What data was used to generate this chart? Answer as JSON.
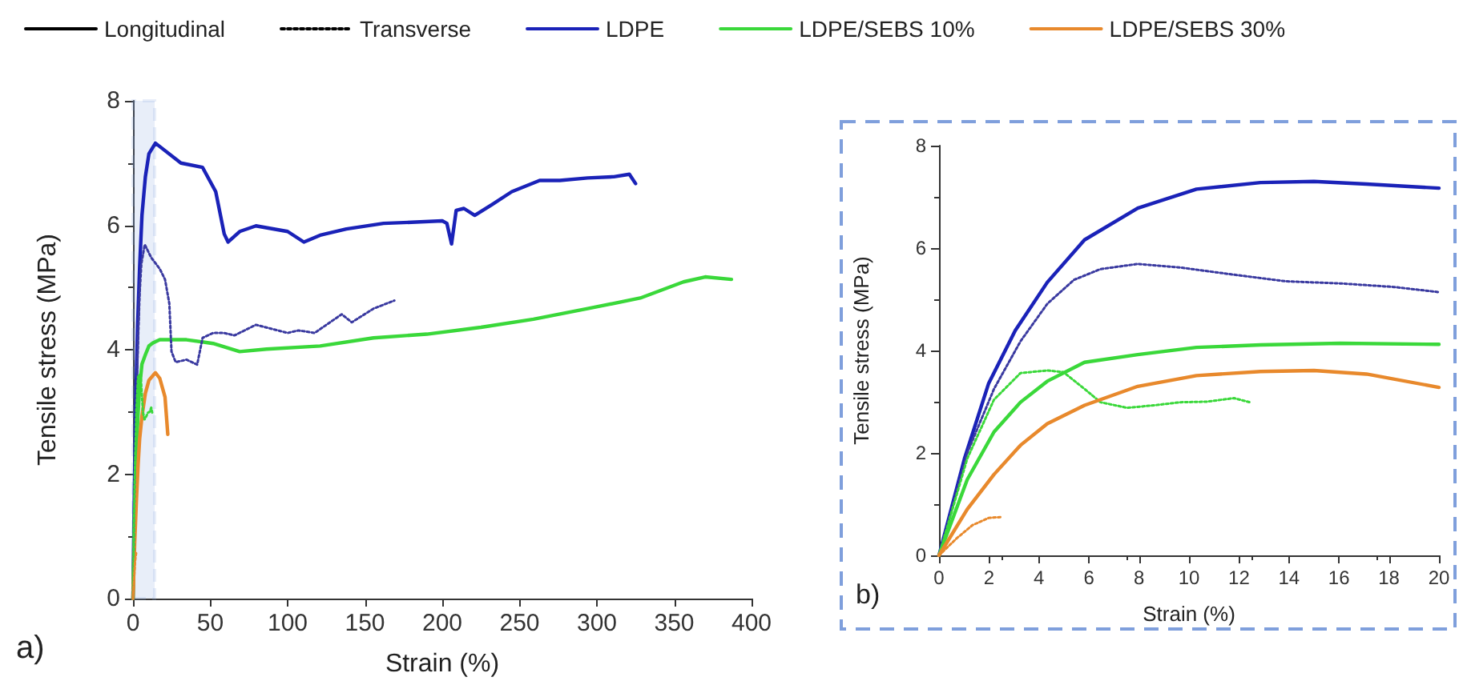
{
  "chart_data": [
    {
      "type": "line",
      "xlabel": "Strain (%)",
      "ylabel": "Tensile stress (MPa)",
      "xlim": [
        0,
        400
      ],
      "xticks": [
        0,
        50,
        100,
        150,
        200,
        250,
        300,
        350,
        400
      ],
      "ylim": [
        0,
        8
      ],
      "yticks": [
        0,
        2,
        4,
        6,
        8
      ],
      "legend": "top",
      "marker": "none",
      "annotations": [
        "a)"
      ],
      "bands": [
        {
          "axis": "x",
          "from": 0,
          "to": 14,
          "color": "#7f9fdc"
        }
      ],
      "series": [
        {
          "name": "Longitudinal",
          "color": "#000000",
          "line_style": "solid"
        },
        {
          "name": "Transverse",
          "color": "#000000",
          "line_style": "dotted"
        },
        {
          "name": "LDPE",
          "color": "#1a22b8",
          "line_style": "solid",
          "x": [
            0,
            1,
            2,
            3,
            4.3,
            5.8,
            8,
            10.3,
            14.5,
            31,
            45,
            53.5,
            59,
            61.5,
            69,
            79.5,
            100,
            110.5,
            121,
            138,
            162,
            200,
            203,
            206,
            209,
            214,
            221,
            232,
            245,
            263,
            276,
            294,
            311,
            321,
            325
          ],
          "values": [
            0,
            1.89,
            3.35,
            4.39,
            5.33,
            6.16,
            6.78,
            7.15,
            7.32,
            7.0,
            6.93,
            6.54,
            5.86,
            5.73,
            5.9,
            5.99,
            5.9,
            5.73,
            5.84,
            5.94,
            6.03,
            6.07,
            6.03,
            5.7,
            6.24,
            6.27,
            6.16,
            6.33,
            6.54,
            6.72,
            6.72,
            6.76,
            6.78,
            6.82,
            6.67
          ]
        },
        {
          "name": "LDPE/SEBS 10%",
          "color": "#3ad83a",
          "line_style": "solid",
          "x": [
            0,
            1.1,
            2.2,
            3.3,
            4.3,
            5.8,
            8,
            10.3,
            12.9,
            17.3,
            34.6,
            51.8,
            69,
            86.4,
            121,
            155.5,
            190,
            225,
            259,
            294,
            328,
            356,
            370,
            387
          ],
          "values": [
            0,
            1.48,
            2.41,
            2.99,
            3.4,
            3.77,
            3.92,
            4.06,
            4.11,
            4.16,
            4.16,
            4.1,
            3.97,
            4.01,
            4.06,
            4.19,
            4.25,
            4.36,
            4.49,
            4.66,
            4.83,
            5.09,
            5.17,
            5.13
          ]
        },
        {
          "name": "LDPE/SEBS 30%",
          "color": "#e8892c",
          "line_style": "solid",
          "x": [
            0,
            1.1,
            2.2,
            3.3,
            4.3,
            5.8,
            8,
            10.3,
            14.5,
            17.3,
            20.7,
            22.5
          ],
          "values": [
            0,
            0.9,
            1.58,
            2.15,
            2.57,
            2.93,
            3.3,
            3.51,
            3.63,
            3.54,
            3.24,
            2.64
          ]
        },
        {
          "color": "#3a3aa0",
          "line_style": "dotted",
          "x": [
            0,
            1.1,
            2.2,
            3.3,
            4.3,
            5.4,
            7.6,
            11.8,
            17.3,
            20.7,
            23.5,
            24.9,
            27.6,
            34.6,
            41.5,
            45,
            51.8,
            58.7,
            65.6,
            79.5,
            100,
            107,
            117.5,
            135,
            141.5,
            155.5,
            169
          ],
          "values": [
            0,
            2.0,
            3.25,
            4.18,
            4.91,
            5.38,
            5.69,
            5.48,
            5.3,
            5.13,
            4.74,
            3.97,
            3.8,
            3.84,
            3.76,
            4.19,
            4.27,
            4.27,
            4.23,
            4.4,
            4.27,
            4.31,
            4.27,
            4.57,
            4.44,
            4.66,
            4.79
          ]
        },
        {
          "color": "#3ad83a",
          "line_style": "dotted",
          "x": [
            0,
            1.1,
            2.2,
            3.3,
            4.3,
            5,
            5.8,
            6.5,
            7.5,
            8.6,
            9.7,
            10.7,
            11.8,
            12.4
          ],
          "values": [
            0,
            1.89,
            3.04,
            3.56,
            3.61,
            3.58,
            3.25,
            2.99,
            2.88,
            2.93,
            2.99,
            3.0,
            3.07,
            2.99
          ]
        },
        {
          "color": "#e8892c",
          "line_style": "dotted",
          "x": [
            0,
            0.7,
            1.3,
            2,
            2.5
          ],
          "values": [
            0,
            0.33,
            0.59,
            0.73,
            0.75
          ]
        }
      ]
    },
    {
      "type": "line",
      "xlabel": "Strain (%)",
      "ylabel": "Tensile stress (MPa)",
      "xlim": [
        0,
        20
      ],
      "xticks": [
        0,
        2,
        4,
        6,
        8,
        10,
        12,
        14,
        16,
        18,
        20
      ],
      "ylim": [
        0,
        8
      ],
      "yticks": [
        0,
        2,
        4,
        6,
        8
      ],
      "marker": "none",
      "annotations": [
        "b)"
      ],
      "series": [
        {
          "color": "#1a22b8",
          "line_style": "solid",
          "x": [
            0,
            1.02,
            1.98,
            3.05,
            4.33,
            5.82,
            7.95,
            10.3,
            12.86,
            15,
            17.1,
            20
          ],
          "values": [
            0,
            1.89,
            3.35,
            4.39,
            5.33,
            6.16,
            6.78,
            7.15,
            7.28,
            7.3,
            7.25,
            7.17
          ]
        },
        {
          "color": "#3a3aa0",
          "line_style": "dotted",
          "x": [
            0,
            1.13,
            2.2,
            3.26,
            4.33,
            5.4,
            6.46,
            7.95,
            9.66,
            11.8,
            13.9,
            16.05,
            18.2,
            20
          ],
          "values": [
            0,
            2.0,
            3.25,
            4.18,
            4.91,
            5.38,
            5.59,
            5.69,
            5.62,
            5.48,
            5.35,
            5.31,
            5.24,
            5.14
          ]
        },
        {
          "color": "#3ad83a",
          "line_style": "solid",
          "x": [
            0,
            1.13,
            2.2,
            3.26,
            4.33,
            5.82,
            7.95,
            10.3,
            12.86,
            16.05,
            20
          ],
          "values": [
            0,
            1.48,
            2.41,
            2.99,
            3.4,
            3.77,
            3.92,
            4.06,
            4.11,
            4.14,
            4.12
          ]
        },
        {
          "color": "#3ad83a",
          "line_style": "dotted",
          "x": [
            0,
            1.13,
            2.2,
            3.26,
            4.33,
            4.97,
            5.82,
            6.46,
            7.53,
            8.6,
            9.66,
            10.7,
            11.8,
            12.43
          ],
          "values": [
            0,
            1.89,
            3.04,
            3.56,
            3.61,
            3.58,
            3.25,
            2.99,
            2.88,
            2.93,
            2.99,
            3.0,
            3.07,
            2.99
          ]
        },
        {
          "color": "#e8892c",
          "line_style": "solid",
          "x": [
            0,
            1.13,
            2.2,
            3.26,
            4.33,
            5.82,
            7.95,
            10.3,
            12.86,
            15,
            17.1,
            20
          ],
          "values": [
            0,
            0.9,
            1.58,
            2.15,
            2.57,
            2.93,
            3.3,
            3.51,
            3.59,
            3.61,
            3.54,
            3.28
          ]
        },
        {
          "color": "#e8892c",
          "line_style": "dotted",
          "x": [
            0,
            0.7,
            1.34,
            1.98,
            2.52
          ],
          "values": [
            0,
            0.33,
            0.59,
            0.73,
            0.75
          ]
        }
      ]
    }
  ]
}
